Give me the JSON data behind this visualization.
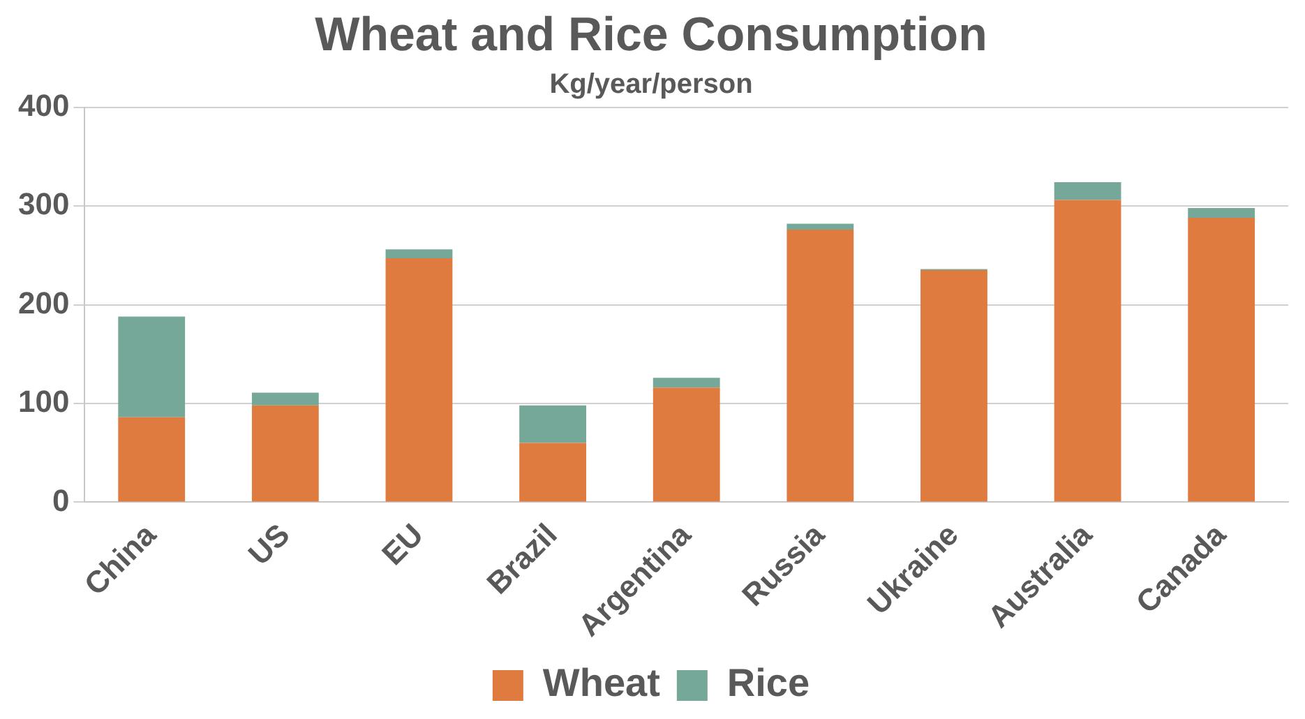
{
  "chart_data": {
    "type": "bar",
    "title": "Wheat and Rice Consumption",
    "subtitle": "Kg/year/person",
    "categories": [
      "China",
      "US",
      "EU",
      "Brazil",
      "Argentina",
      "Russia",
      "Ukraine",
      "Australia",
      "Canada"
    ],
    "series": [
      {
        "name": "Wheat",
        "color": "#e07b3f",
        "values": [
          86,
          98,
          247,
          60,
          116,
          276,
          235,
          306,
          288
        ]
      },
      {
        "name": "Rice",
        "color": "#76a89a",
        "values": [
          102,
          13,
          9,
          38,
          10,
          6,
          1,
          18,
          10
        ]
      }
    ],
    "stacked": true,
    "ylim": [
      0,
      400
    ],
    "yticks": [
      0,
      100,
      200,
      300,
      400
    ],
    "grid": "y",
    "legend": "bottom"
  }
}
